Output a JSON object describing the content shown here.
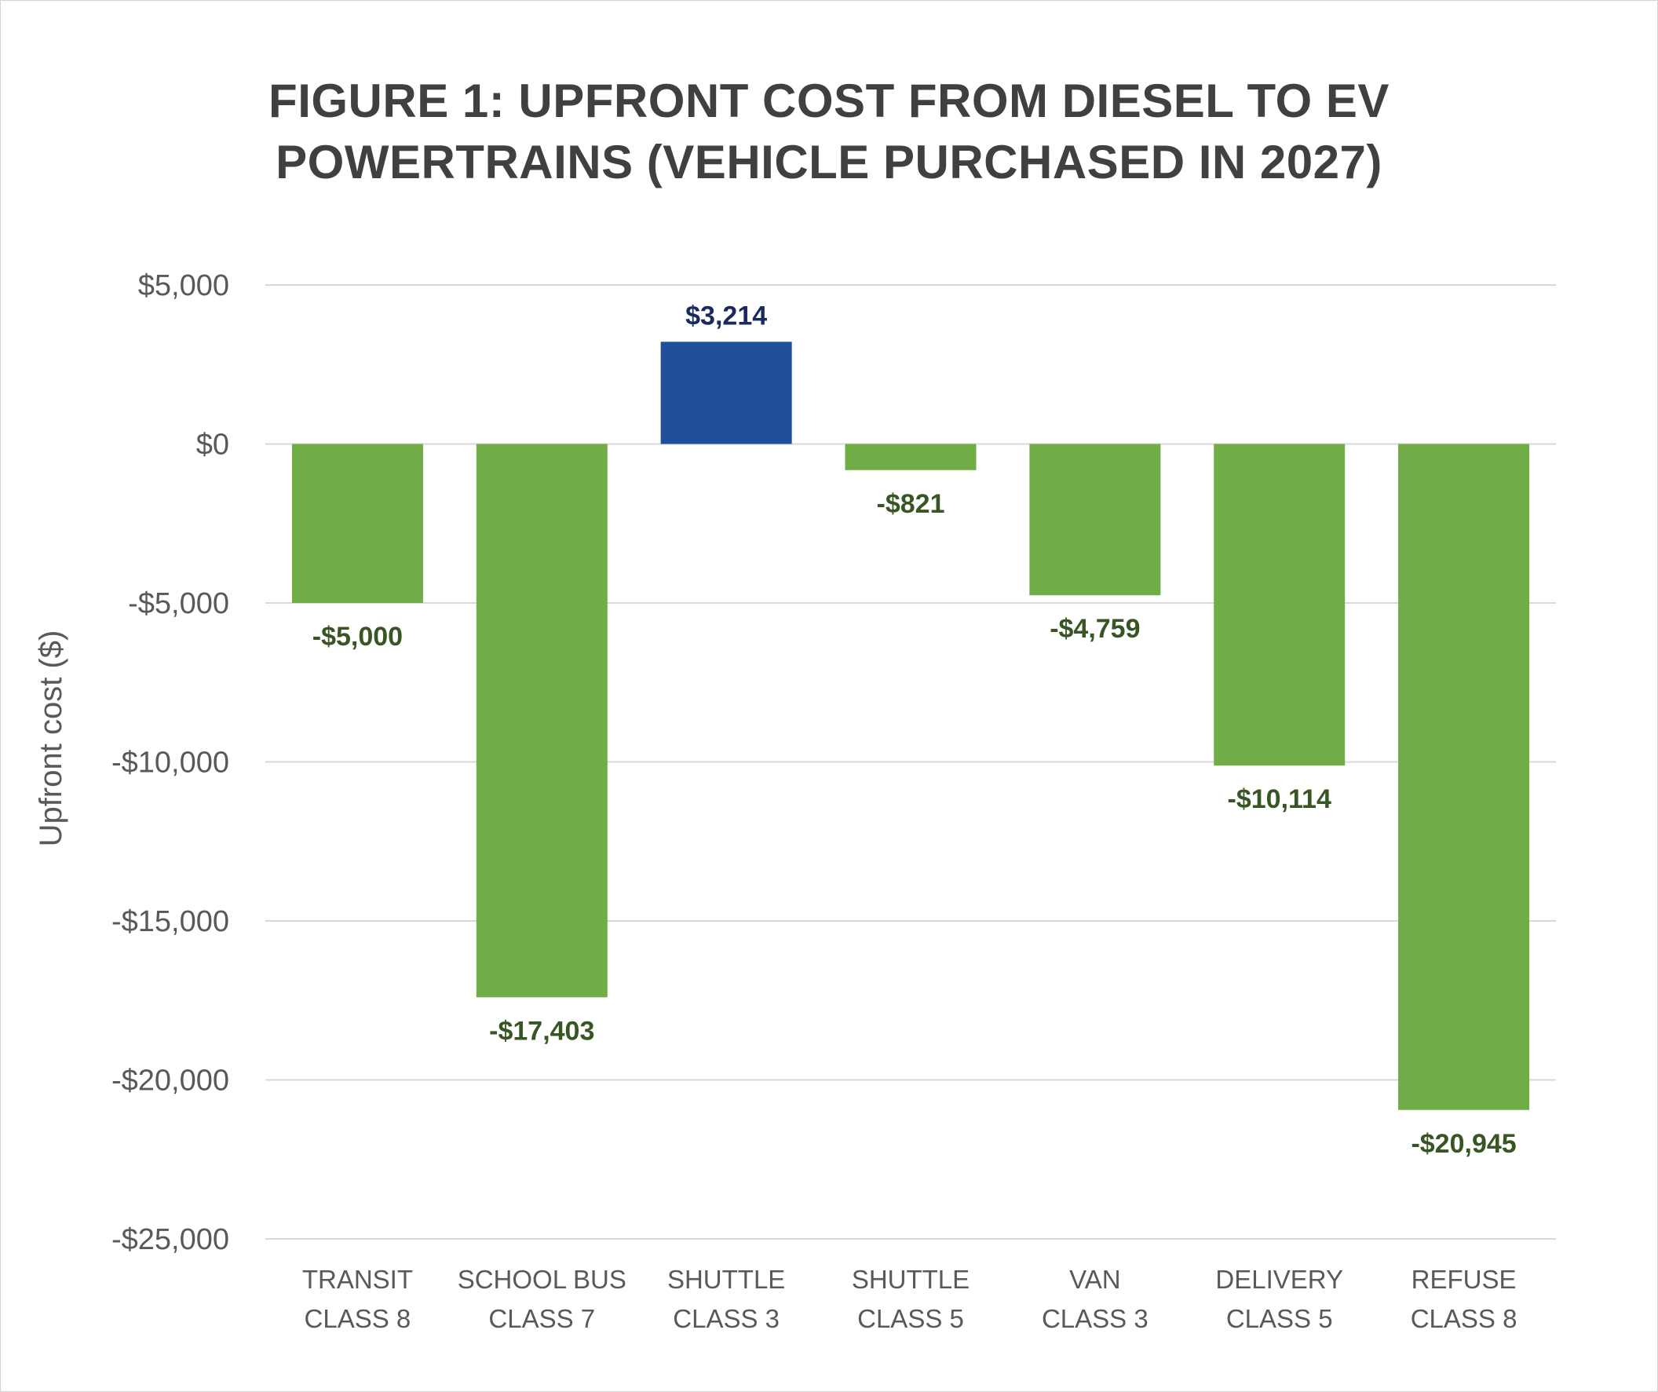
{
  "chart_data": {
    "type": "bar",
    "title_lines": [
      "FIGURE 1: UPFRONT COST FROM DIESEL TO EV",
      "POWERTRAINS (VEHICLE PURCHASED IN 2027)"
    ],
    "ylabel": "Upfront cost ($)",
    "categories": [
      [
        "TRANSIT",
        "CLASS 8"
      ],
      [
        "SCHOOL BUS",
        "CLASS 7"
      ],
      [
        "SHUTTLE",
        "CLASS 3"
      ],
      [
        "SHUTTLE",
        "CLASS 5"
      ],
      [
        "VAN",
        "CLASS 3"
      ],
      [
        "DELIVERY",
        "CLASS 5"
      ],
      [
        "REFUSE",
        "CLASS 8"
      ]
    ],
    "values": [
      -5000,
      -17403,
      3214,
      -821,
      -4759,
      -10114,
      -20945
    ],
    "data_labels": [
      "-$5,000",
      "-$17,403",
      "$3,214",
      "-$821",
      "-$4,759",
      "-$10,114",
      "-$20,945"
    ],
    "ylim": [
      -25000,
      5000
    ],
    "yticks": [
      5000,
      0,
      -5000,
      -10000,
      -15000,
      -20000,
      -25000
    ],
    "ytick_labels": [
      "$5,000",
      "$0",
      "-$5,000",
      "-$10,000",
      "-$15,000",
      "-$20,000",
      "-$25,000"
    ],
    "grid": true,
    "legend": "none",
    "colors": {
      "positive_bar": "#1f4e9b",
      "negative_bar": "#70ad47",
      "positive_label": "#1a2a5e",
      "negative_label": "#375623",
      "gridline": "#d9d9d9",
      "text": "#595959",
      "title": "#404040"
    }
  }
}
